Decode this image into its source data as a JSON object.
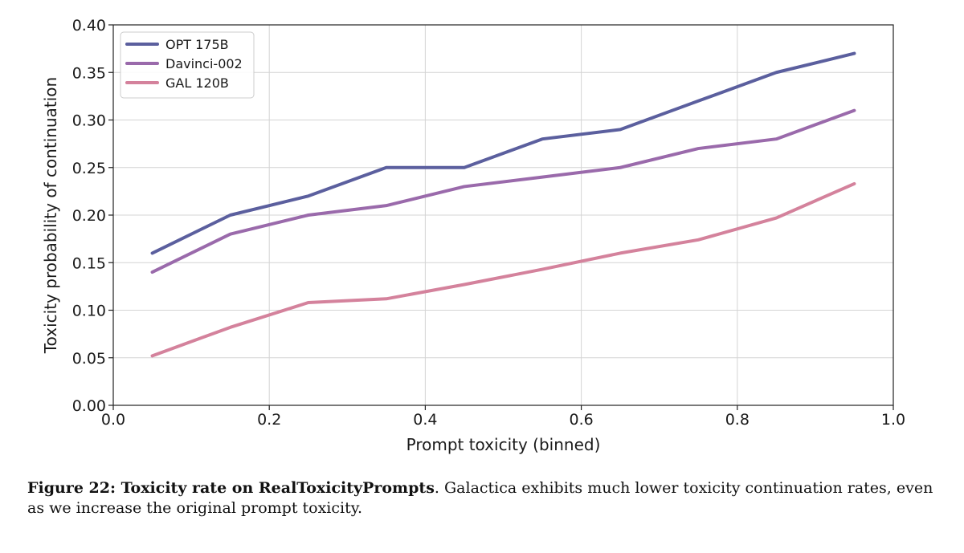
{
  "chart_data": {
    "type": "line",
    "title": "",
    "xlabel": "Prompt toxicity (binned)",
    "ylabel": "Toxicity probability of continuation",
    "xlim": [
      0.0,
      1.0
    ],
    "ylim": [
      0.0,
      0.4
    ],
    "xticks": [
      "0.0",
      "0.2",
      "0.4",
      "0.6",
      "0.8",
      "1.0"
    ],
    "yticks": [
      "0.00",
      "0.05",
      "0.10",
      "0.15",
      "0.20",
      "0.25",
      "0.30",
      "0.35",
      "0.40"
    ],
    "grid": true,
    "legend_position": "top-left",
    "x": [
      0.05,
      0.15,
      0.25,
      0.35,
      0.45,
      0.55,
      0.65,
      0.75,
      0.85,
      0.95
    ],
    "series": [
      {
        "name": "OPT 175B",
        "color": "#5b5f9e",
        "values": [
          0.16,
          0.2,
          0.22,
          0.25,
          0.25,
          0.28,
          0.29,
          0.32,
          0.35,
          0.37
        ]
      },
      {
        "name": "Davinci-002",
        "color": "#9a6aab",
        "values": [
          0.14,
          0.18,
          0.2,
          0.21,
          0.23,
          0.24,
          0.25,
          0.27,
          0.28,
          0.31
        ]
      },
      {
        "name": "GAL 120B",
        "color": "#d4829c",
        "values": [
          0.052,
          0.082,
          0.108,
          0.112,
          0.127,
          0.143,
          0.16,
          0.174,
          0.197,
          0.233
        ]
      }
    ]
  },
  "caption": {
    "label": "Figure 22: Toxicity rate on RealToxicityPrompts",
    "text": ". Galactica exhibits much lower toxicity continuation rates, even as we increase the original prompt toxicity."
  }
}
